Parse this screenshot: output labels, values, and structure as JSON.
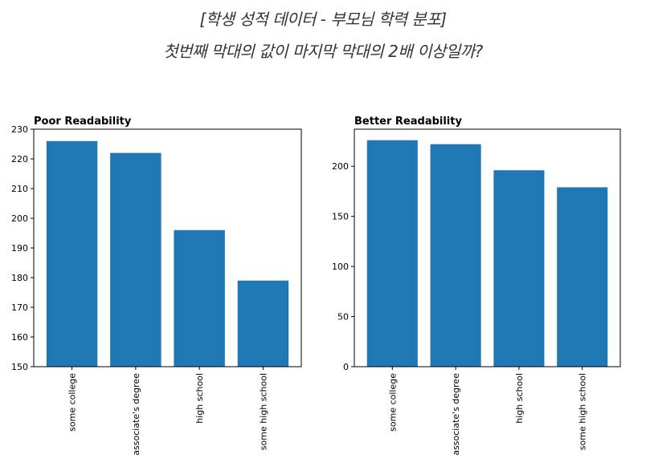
{
  "header": {
    "line1": "[학생 성적 데이터 - 부모님 학력  분포]",
    "line2": "첫번째 막대의 값이 마지막 막대의 2배 이상일까?"
  },
  "colors": {
    "bar": "#1f77b4",
    "axis": "#000000",
    "page": "#ffffff"
  },
  "chart_data": [
    {
      "type": "bar",
      "title": "Poor Readability",
      "categories": [
        "some college",
        "associate's degree",
        "high school",
        "some high school"
      ],
      "values": [
        226,
        222,
        196,
        179
      ],
      "ylim": [
        150,
        230
      ],
      "yticks": [
        150,
        160,
        170,
        180,
        190,
        200,
        210,
        220,
        230
      ],
      "xlabel": "",
      "ylabel": "",
      "grid": false
    },
    {
      "type": "bar",
      "title": "Better Readability",
      "categories": [
        "some college",
        "associate's degree",
        "high school",
        "some high school"
      ],
      "values": [
        226,
        222,
        196,
        179
      ],
      "ylim": [
        0,
        237
      ],
      "yticks": [
        0,
        50,
        100,
        150,
        200
      ],
      "xlabel": "",
      "ylabel": "",
      "grid": false
    }
  ]
}
